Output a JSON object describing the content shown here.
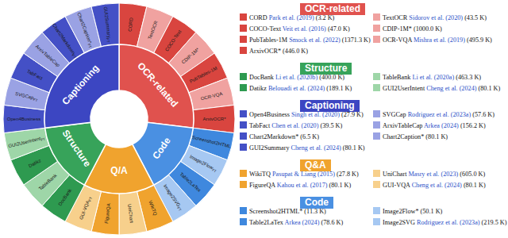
{
  "chart_data": {
    "type": "sunburst",
    "groups": [
      {
        "name": "OCR-related",
        "ring_label": "OCR-related",
        "color": "#e0524e",
        "items": [
          {
            "name": "CORD",
            "citation": "Park et al. (2019)",
            "size_label": "(3.2 K)",
            "ring_label": "CORD",
            "color": "#d9453f"
          },
          {
            "name": "TextOCR",
            "citation": "Sidorov et al. (2020)",
            "size_label": "(43.5 K)",
            "ring_label": "TextOCR",
            "color": "#f0a2a0"
          },
          {
            "name": "COCO-Text",
            "citation": "Veit et al. (2016)",
            "size_label": "(47.0 K)",
            "ring_label": "COCO-Text",
            "color": "#d9453f"
          },
          {
            "name": "CDIP-1M*",
            "size_label": "(1000.0 K)",
            "ring_label": "CDIP-1M*",
            "color": "#f0a2a0"
          },
          {
            "name": "PubTables-1M",
            "citation": "Smock et al. (2022)",
            "size_label": "(1371.3 K)",
            "ring_label": "PubTables-1M",
            "color": "#d9453f"
          },
          {
            "name": "OCR-VQA",
            "citation": "Mishra et al. (2019)",
            "size_label": "(495.9 K)",
            "ring_label": "OCR-VQA",
            "color": "#f0a2a0"
          },
          {
            "name": "ArxivOCR*",
            "size_label": "(446.0 K)",
            "ring_label": "ArxivOCR*",
            "color": "#d9453f"
          }
        ]
      },
      {
        "name": "Structure",
        "ring_label": "Structure",
        "color": "#37a35a",
        "items": [
          {
            "name": "DocBank",
            "citation": "Li et al. (2020b)",
            "size_label": "(400.0 K)",
            "ring_label": "DocBank",
            "color": "#2e9a50"
          },
          {
            "name": "TableBank",
            "citation": "Li et al. (2020a)",
            "size_label": "(463.3 K)",
            "ring_label": "TableBank",
            "color": "#9ed6a8"
          },
          {
            "name": "Datikz",
            "citation": "Belouadi et al. (2024)",
            "size_label": "(189.1 K)",
            "ring_label": "Datikz",
            "color": "#2e9a50"
          },
          {
            "name": "GUI2UserIntent",
            "citation": "Cheng et al. (2024)",
            "size_label": "(80.1 K)",
            "ring_label": "GUI2UserIntent",
            "ring_sub": "FT",
            "color": "#9ed6a8"
          }
        ]
      },
      {
        "name": "Captioning",
        "ring_label": "Captioning",
        "color": "#3c46c2",
        "items": [
          {
            "name": "Open4Business",
            "citation": "Singh et al. (2020)",
            "size_label": "(27.9 K)",
            "ring_label": "Open4Business",
            "color": "#4450c6"
          },
          {
            "name": "SVGCap",
            "citation": "Rodriguez et al. (2023a)",
            "size_label": "(57.6 K)",
            "ring_label": "SVGCap",
            "ring_sub": "FT",
            "color": "#9aa2e4"
          },
          {
            "name": "TabFact",
            "citation": "Chen et al. (2020)",
            "size_label": "(39.5 K)",
            "ring_label": "TabFact",
            "color": "#4450c6"
          },
          {
            "name": "ArxivTableCap",
            "citation": "Arkea (2024)",
            "size_label": "(156.2 K)",
            "ring_label": "ArxivTableCap",
            "color": "#9aa2e4"
          },
          {
            "name": "Chart2Markdown*",
            "size_label": "(6.5 K)",
            "ring_label": "Chart2Markdown",
            "ring_sub": "FT",
            "color": "#4450c6"
          },
          {
            "name": "Chart2Caption*",
            "size_label": "(80.1 K)",
            "ring_label": "Chart2Caption*",
            "ring_sub": "FT",
            "color": "#9aa2e4"
          },
          {
            "name": "GUI2Summary",
            "citation": "Cheng et al. (2024)",
            "size_label": "(80.1 K)",
            "ring_label": "GUI2Summary",
            "ring_sub": "FT",
            "color": "#4450c6"
          }
        ]
      },
      {
        "name": "Q&A",
        "ring_label": "Q/A",
        "color": "#f0a32e",
        "items": [
          {
            "name": "WikiTQ",
            "citation": "Pasupat & Liang (2015)",
            "size_label": "(27.8 K)",
            "ring_label": "WikiTQ",
            "color": "#f0a32e"
          },
          {
            "name": "UniChart",
            "citation": "Masry et al. (2023)",
            "size_label": "(605.0 K)",
            "ring_label": "UniChart",
            "color": "#f7d08c"
          },
          {
            "name": "FigureQA",
            "citation": "Kahou et al. (2017)",
            "size_label": "(80.1 K)",
            "ring_label": "FigureQA",
            "color": "#f0a32e"
          },
          {
            "name": "GUI-VQA",
            "citation": "Cheng et al. (2024)",
            "size_label": "(80.1 K)",
            "ring_label": "GUI-VQA",
            "ring_sub": "FT",
            "color": "#f7d08c"
          }
        ]
      },
      {
        "name": "Code",
        "ring_label": "Code",
        "color": "#4a90e2",
        "items": [
          {
            "name": "Screenshot2HTML*",
            "size_label": "(11.3 K)",
            "ring_label": "Screenshot2HTML",
            "color": "#3f88de"
          },
          {
            "name": "Image2Flow*",
            "size_label": "(50.1 K)",
            "ring_label": "Image2Flow",
            "ring_sub": "FT",
            "color": "#a6c8f2"
          },
          {
            "name": "Table2LaTex",
            "citation": "Arkea (2024)",
            "size_label": "(78.6 K)",
            "ring_label": "Table2LaTex",
            "color": "#3f88de"
          },
          {
            "name": "Image2SVG",
            "citation": "Rodriguez et al. (2023a)",
            "size_label": "(219.5 K)",
            "ring_label": "Image2SVG",
            "ring_sub": "FT",
            "color": "#a6c8f2"
          }
        ]
      }
    ]
  }
}
